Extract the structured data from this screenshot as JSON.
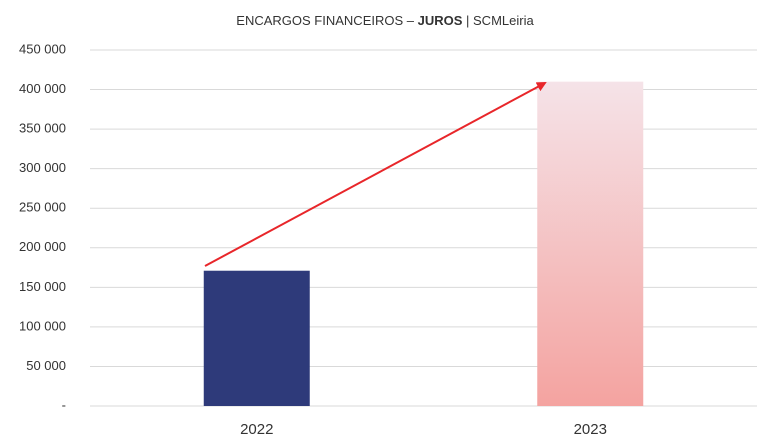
{
  "chart_data": {
    "type": "bar",
    "title": [
      "ENCARGOS FINANCEIROS – ",
      "JUROS",
      " | SCMLeiria"
    ],
    "categories": [
      "2022",
      "2023"
    ],
    "values": [
      171000,
      410000
    ],
    "colors": [
      "#2e3a7a",
      "#f4a3a0"
    ],
    "ylim": [
      0,
      450000
    ],
    "yticks": [
      {
        "value": 0,
        "label": "-"
      },
      {
        "value": 50000,
        "label": "50 000"
      },
      {
        "value": 100000,
        "label": "100 000"
      },
      {
        "value": 150000,
        "label": "150 000"
      },
      {
        "value": 200000,
        "label": "200 000"
      },
      {
        "value": 250000,
        "label": "250 000"
      },
      {
        "value": 300000,
        "label": "300 000"
      },
      {
        "value": 350000,
        "label": "350 000"
      },
      {
        "value": 400000,
        "label": "400 000"
      },
      {
        "value": 450000,
        "label": "450 000"
      }
    ],
    "grid": true
  }
}
